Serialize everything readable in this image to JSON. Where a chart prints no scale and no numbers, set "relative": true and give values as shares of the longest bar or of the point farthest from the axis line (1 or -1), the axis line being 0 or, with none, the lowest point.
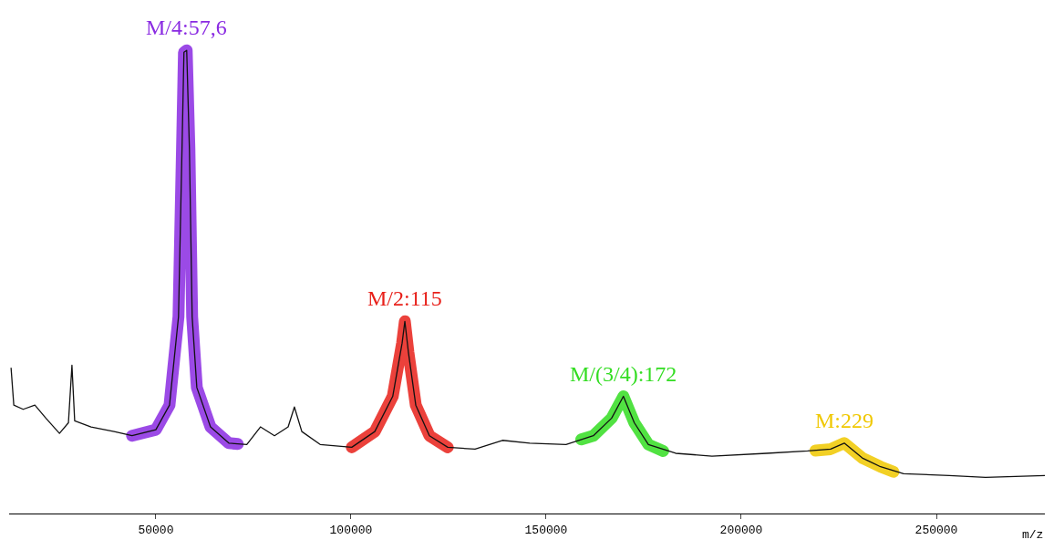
{
  "chart_data": {
    "type": "line",
    "relative": true,
    "xlabel": "m/z",
    "xlim": [
      12400,
      277800
    ],
    "xticks": [
      50000,
      100000,
      150000,
      200000,
      250000
    ],
    "grid": false,
    "marker": "none",
    "line_style": "solid",
    "series": [
      {
        "color": "#8a2be2",
        "x": [
          43900,
          50000,
          53500,
          55800,
          56700,
          57200,
          57900,
          58600,
          59300,
          60500,
          64000,
          68700,
          71000
        ],
        "values": [
          0.168,
          0.181,
          0.234,
          0.425,
          0.787,
          0.996,
          1,
          0.787,
          0.425,
          0.272,
          0.187,
          0.152,
          0.15
        ]
      },
      {
        "color": "#e8201a",
        "x": [
          100200,
          106100,
          110700,
          113100,
          113800,
          114700,
          116600,
          120100,
          124800
        ],
        "values": [
          0.143,
          0.177,
          0.253,
          0.368,
          0.415,
          0.349,
          0.234,
          0.168,
          0.143
        ]
      },
      {
        "color": "#33dd22",
        "x": [
          159000,
          162100,
          166800,
          169800,
          172600,
          176200,
          180000
        ],
        "values": [
          0.16,
          0.168,
          0.206,
          0.253,
          0.196,
          0.149,
          0.135
        ]
      },
      {
        "color": "#f0c800",
        "x": [
          219000,
          222900,
          226400,
          231000,
          235700,
          239000
        ],
        "values": [
          0.136,
          0.139,
          0.152,
          0.12,
          0.101,
          0.09
        ]
      },
      {
        "color": "#111111",
        "x": [
          12900,
          13600,
          16000,
          19000,
          21800,
          25300,
          27600,
          28500,
          29200,
          33400,
          39300,
          43900,
          50000,
          53500,
          55800,
          56700,
          57200,
          57900,
          58600,
          59300,
          60500,
          64000,
          68700,
          73300,
          76800,
          80400,
          83900,
          85500,
          87400,
          92100,
          100200,
          106100,
          110700,
          113100,
          113800,
          114700,
          116600,
          120100,
          124800,
          131800,
          138800,
          145800,
          155100,
          162100,
          166800,
          169800,
          172600,
          176200,
          183200,
          192500,
          206500,
          217000,
          222900,
          226400,
          231000,
          235700,
          241600,
          253300,
          262600,
          277800
        ],
        "values": [
          0.314,
          0.234,
          0.225,
          0.234,
          0.206,
          0.173,
          0.196,
          0.32,
          0.2,
          0.187,
          0.177,
          0.168,
          0.181,
          0.234,
          0.425,
          0.787,
          0.996,
          1,
          0.787,
          0.425,
          0.272,
          0.187,
          0.152,
          0.149,
          0.187,
          0.168,
          0.187,
          0.23,
          0.177,
          0.149,
          0.143,
          0.177,
          0.253,
          0.368,
          0.415,
          0.349,
          0.234,
          0.168,
          0.143,
          0.139,
          0.158,
          0.152,
          0.149,
          0.168,
          0.206,
          0.253,
          0.196,
          0.149,
          0.13,
          0.124,
          0.13,
          0.135,
          0.139,
          0.152,
          0.12,
          0.101,
          0.086,
          0.082,
          0.078,
          0.082
        ]
      }
    ],
    "annotations": [
      {
        "text": "M/4:57,6",
        "x": 57900,
        "y": 1
      },
      {
        "text": "M/2:115",
        "x": 113800,
        "y": 0.415
      },
      {
        "text": "M/(3/4):172",
        "x": 169800,
        "y": 0.253
      },
      {
        "text": "M:229",
        "x": 226400,
        "y": 0.152
      }
    ]
  }
}
